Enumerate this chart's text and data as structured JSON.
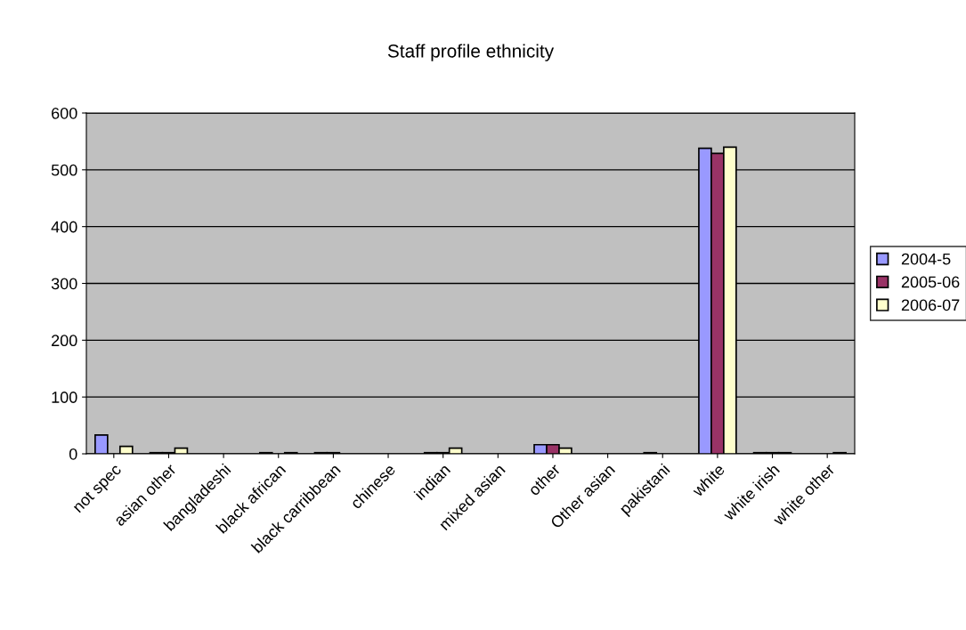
{
  "chart_data": {
    "type": "bar",
    "title": "Staff profile ethnicity",
    "categories": [
      "not spec",
      "asian other",
      "bangladeshi",
      "black african",
      "black carribbean",
      "chinese",
      "indian",
      "mixed asian",
      "other",
      "Other asian",
      "pakistani",
      "white",
      "white irish",
      "white other"
    ],
    "series": [
      {
        "name": "2004-5",
        "color": "#9999ff",
        "values": [
          33,
          2,
          null,
          2,
          2,
          null,
          2,
          null,
          16,
          null,
          2,
          538,
          2,
          null
        ]
      },
      {
        "name": "2005-06",
        "color": "#993366",
        "values": [
          null,
          2,
          null,
          null,
          2,
          null,
          2,
          null,
          16,
          null,
          null,
          529,
          2,
          null
        ]
      },
      {
        "name": "2006-07",
        "color": "#ffffcc",
        "values": [
          13,
          10,
          null,
          2,
          null,
          null,
          10,
          null,
          10,
          null,
          null,
          540,
          2,
          2
        ]
      }
    ],
    "ylim": [
      0,
      600
    ],
    "yticks": [
      0,
      100,
      200,
      300,
      400,
      500,
      600
    ],
    "grid": "y",
    "legend": "right"
  }
}
